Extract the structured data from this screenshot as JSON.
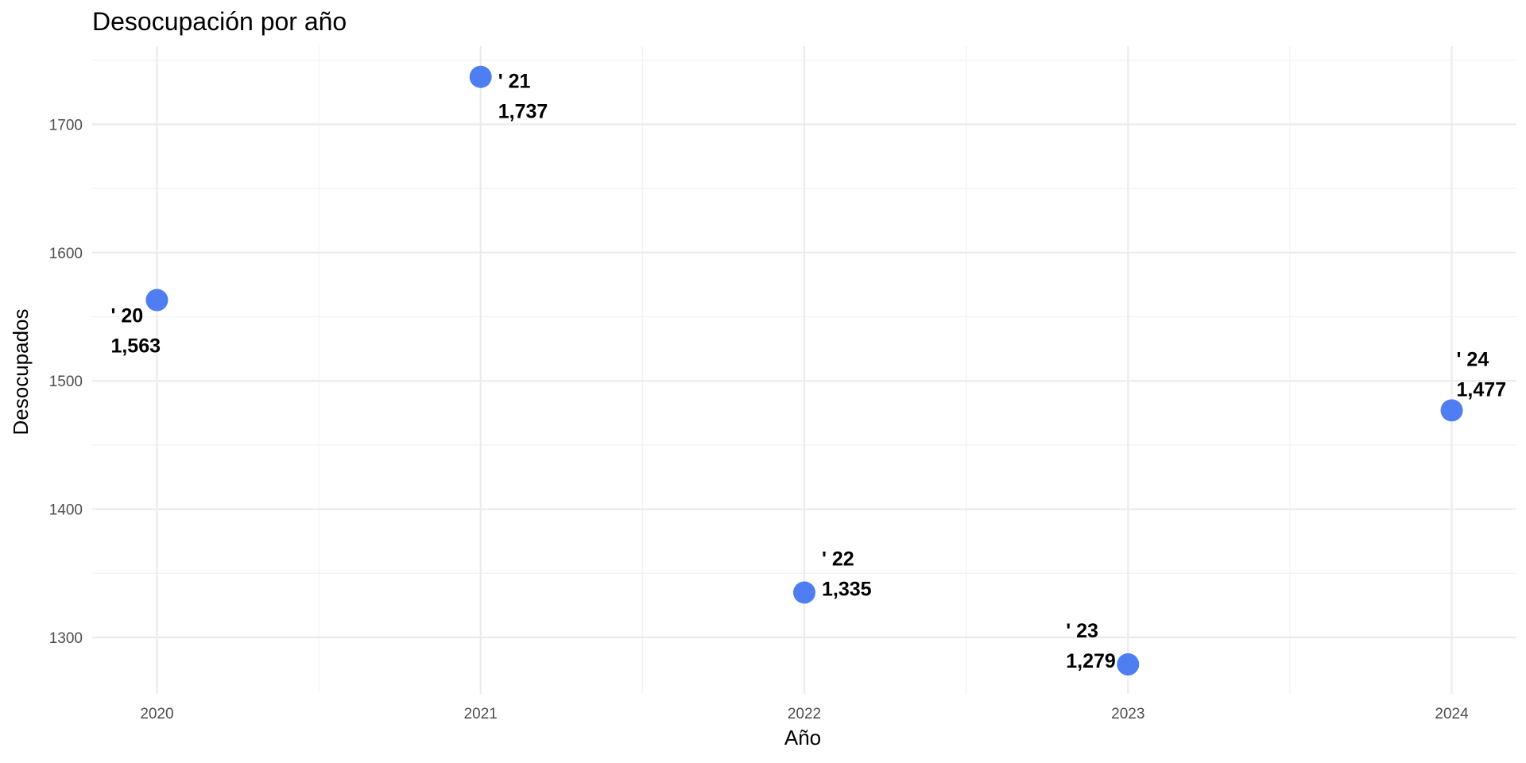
{
  "chart_data": {
    "type": "scatter",
    "title": "Desocupación por año",
    "xlabel": "Año",
    "ylabel": "Desocupados",
    "x": [
      2020,
      2021,
      2022,
      2023,
      2024
    ],
    "y": [
      1563,
      1737,
      1335,
      1279,
      1477
    ],
    "point_labels": [
      {
        "year": "' 20",
        "value": "1,563"
      },
      {
        "year": "' 21",
        "value": "1,737"
      },
      {
        "year": "' 22",
        "value": "1,335"
      },
      {
        "year": "' 23",
        "value": "1,279"
      },
      {
        "year": "' 24",
        "value": "1,477"
      }
    ],
    "x_ticks": [
      "2020",
      "2021",
      "2022",
      "2023",
      "2024"
    ],
    "y_ticks": [
      "1300",
      "1400",
      "1500",
      "1600",
      "1700"
    ],
    "xlim": [
      2019.8,
      2024.2
    ],
    "ylim": [
      1256,
      1761
    ],
    "grid": true,
    "legend": "none",
    "point_color": "#4f7ef2"
  }
}
